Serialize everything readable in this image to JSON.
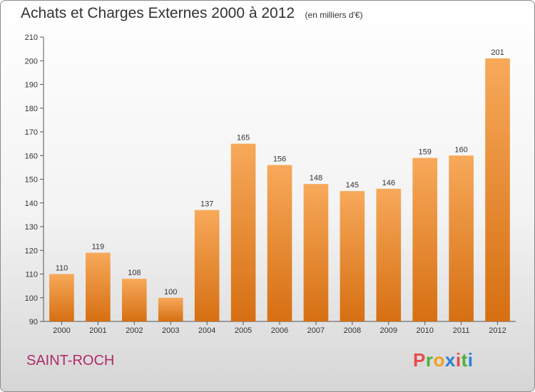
{
  "chart_data": {
    "type": "bar",
    "title": "Achats et Charges Externes 2000 à 2012",
    "subtitle": "(en milliers d'€)",
    "categories": [
      "2000",
      "2001",
      "2002",
      "2003",
      "2004",
      "2005",
      "2006",
      "2007",
      "2008",
      "2009",
      "2010",
      "2011",
      "2012"
    ],
    "values": [
      110,
      119,
      108,
      100,
      137,
      165,
      156,
      148,
      145,
      146,
      159,
      160,
      201
    ],
    "ylim": [
      90,
      210
    ],
    "yticks": [
      90,
      100,
      110,
      120,
      130,
      140,
      150,
      160,
      170,
      180,
      190,
      200,
      210
    ],
    "grid": false,
    "legend": "none",
    "bar_color": "#f0922e"
  },
  "footer": {
    "location": "SAINT-ROCH",
    "logo": "Proxiti"
  },
  "colors": {
    "logo_letters": [
      "#e84a4a",
      "#4caf3c",
      "#f0a020",
      "#2b7fd6",
      "#e84a4a",
      "#4caf3c",
      "#2b7fd6"
    ]
  }
}
